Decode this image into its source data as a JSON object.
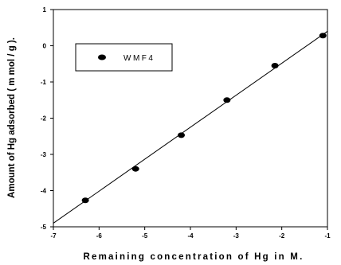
{
  "chart_data": {
    "type": "scatter",
    "xlabel": "Remaining concentration of Hg in M.",
    "ylabel": "Amount of Hg adsorbed ( m mol / g ).",
    "xlim": [
      -7,
      -1
    ],
    "ylim": [
      -5,
      1
    ],
    "x_ticks": [
      -7,
      -6,
      -5,
      -4,
      -3,
      -2,
      -1
    ],
    "y_ticks": [
      -5,
      -4,
      -3,
      -2,
      -1,
      0,
      1
    ],
    "grid": false,
    "legend_position": "top-left",
    "series": [
      {
        "name": "WMF4",
        "marker": "filled-ellipse",
        "color": "#000000",
        "x": [
          -6.3,
          -5.2,
          -4.2,
          -3.2,
          -2.15,
          -1.1
        ],
        "y": [
          -4.27,
          -3.4,
          -2.47,
          -1.5,
          -0.55,
          0.28
        ]
      }
    ],
    "fit_line": {
      "x": [
        -7,
        -1
      ],
      "y": [
        -4.9,
        0.4
      ]
    }
  }
}
